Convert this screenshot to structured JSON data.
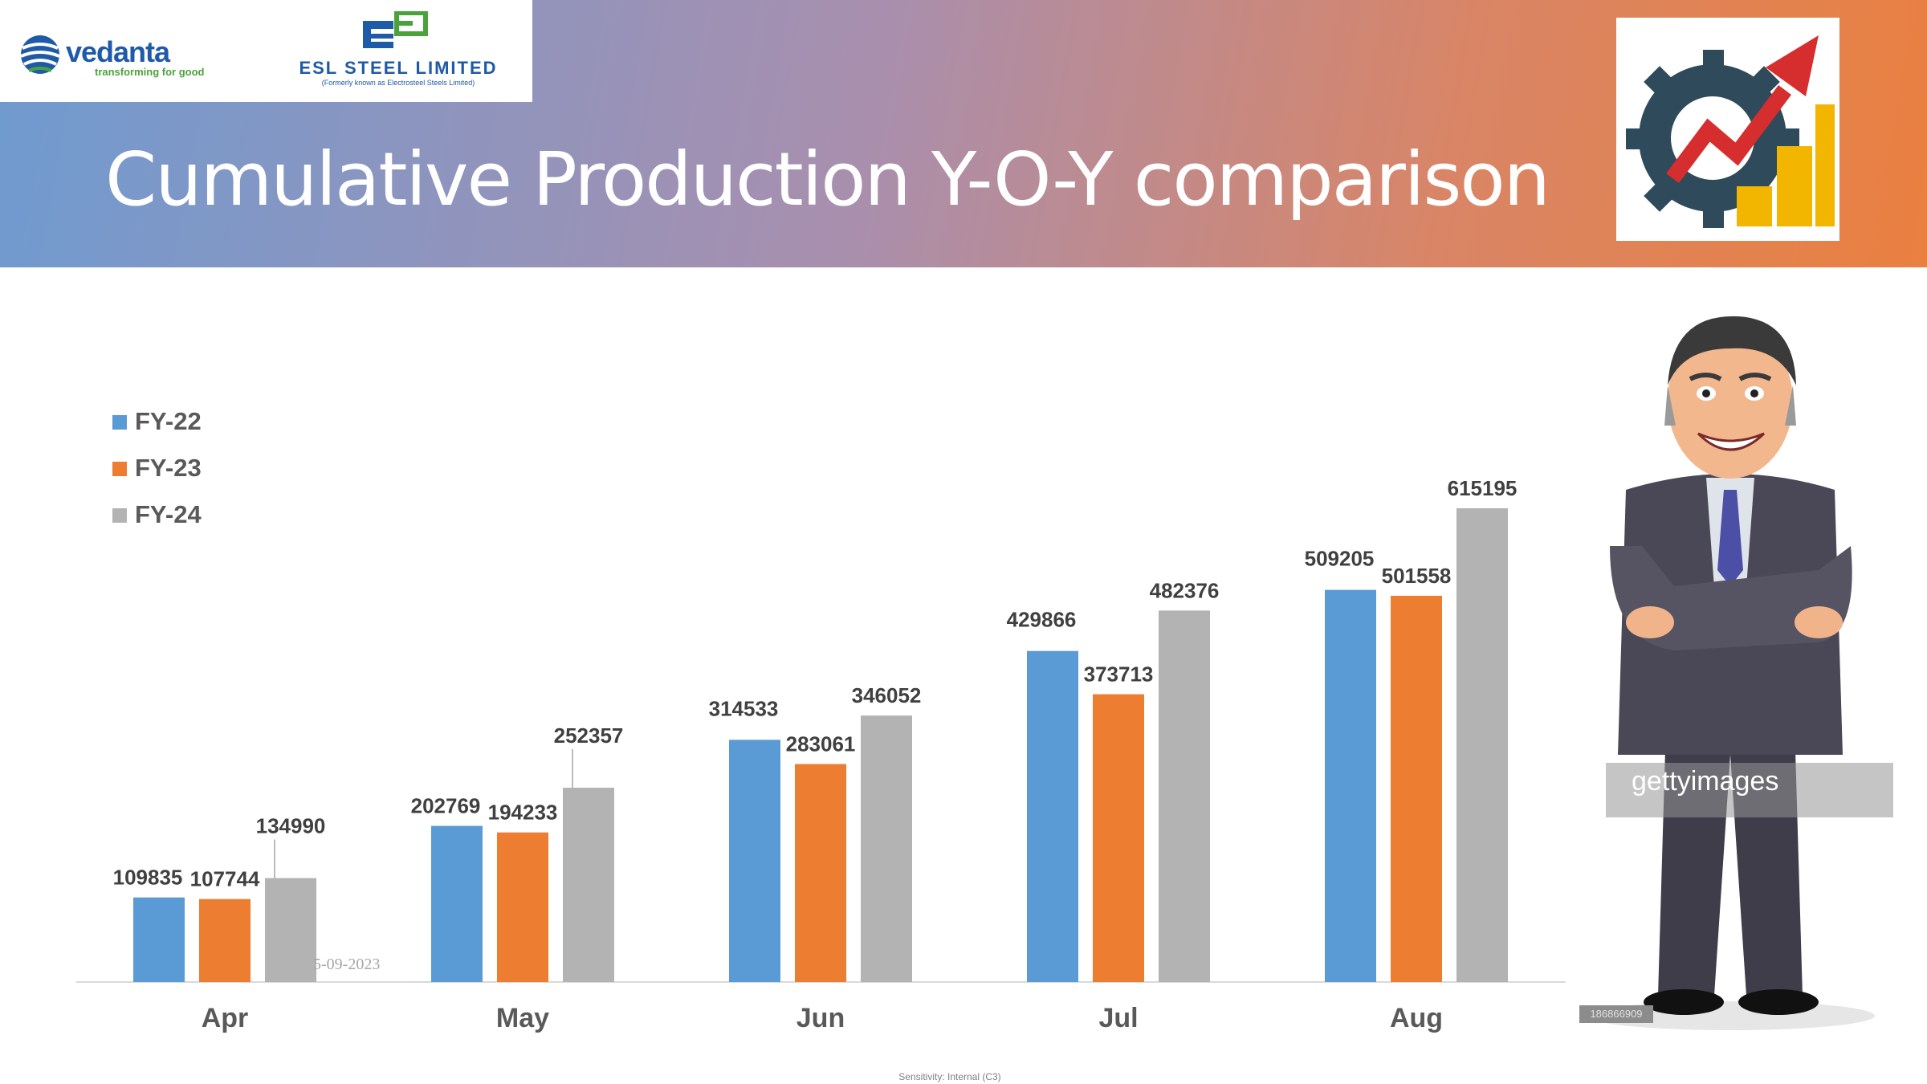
{
  "header": {
    "title": "Cumulative Production Y-O-Y comparison",
    "vedanta_name": "vedanta",
    "vedanta_tagline": "transforming for good",
    "esl_name": "ESL STEEL LIMITED",
    "esl_subtitle": "(Formerly known as Electrosteel Steels Limited)"
  },
  "colors": {
    "fy22": "#5b9bd5",
    "fy23": "#ed7d31",
    "fy24": "#b3b3b3",
    "label_text": "#404040",
    "axis_text": "#595959"
  },
  "chart_data": {
    "type": "bar",
    "categories": [
      "Apr",
      "May",
      "Jun",
      "Jul",
      "Aug"
    ],
    "series": [
      {
        "name": "FY-22",
        "values": [
          109835,
          202769,
          314533,
          429866,
          509205
        ]
      },
      {
        "name": "FY-23",
        "values": [
          107744,
          194233,
          283061,
          373713,
          501558
        ]
      },
      {
        "name": "FY-24",
        "values": [
          134990,
          252357,
          346052,
          482376,
          615195
        ]
      }
    ],
    "ylim": [
      0,
      650000
    ],
    "grid": false,
    "legend_position": "top-left",
    "data_labels": true
  },
  "watermark_date": "5-09-2023",
  "footer": "Sensitivity: Internal (C3)",
  "getty": {
    "brand": "gettyimages",
    "image_id": "186866909"
  }
}
